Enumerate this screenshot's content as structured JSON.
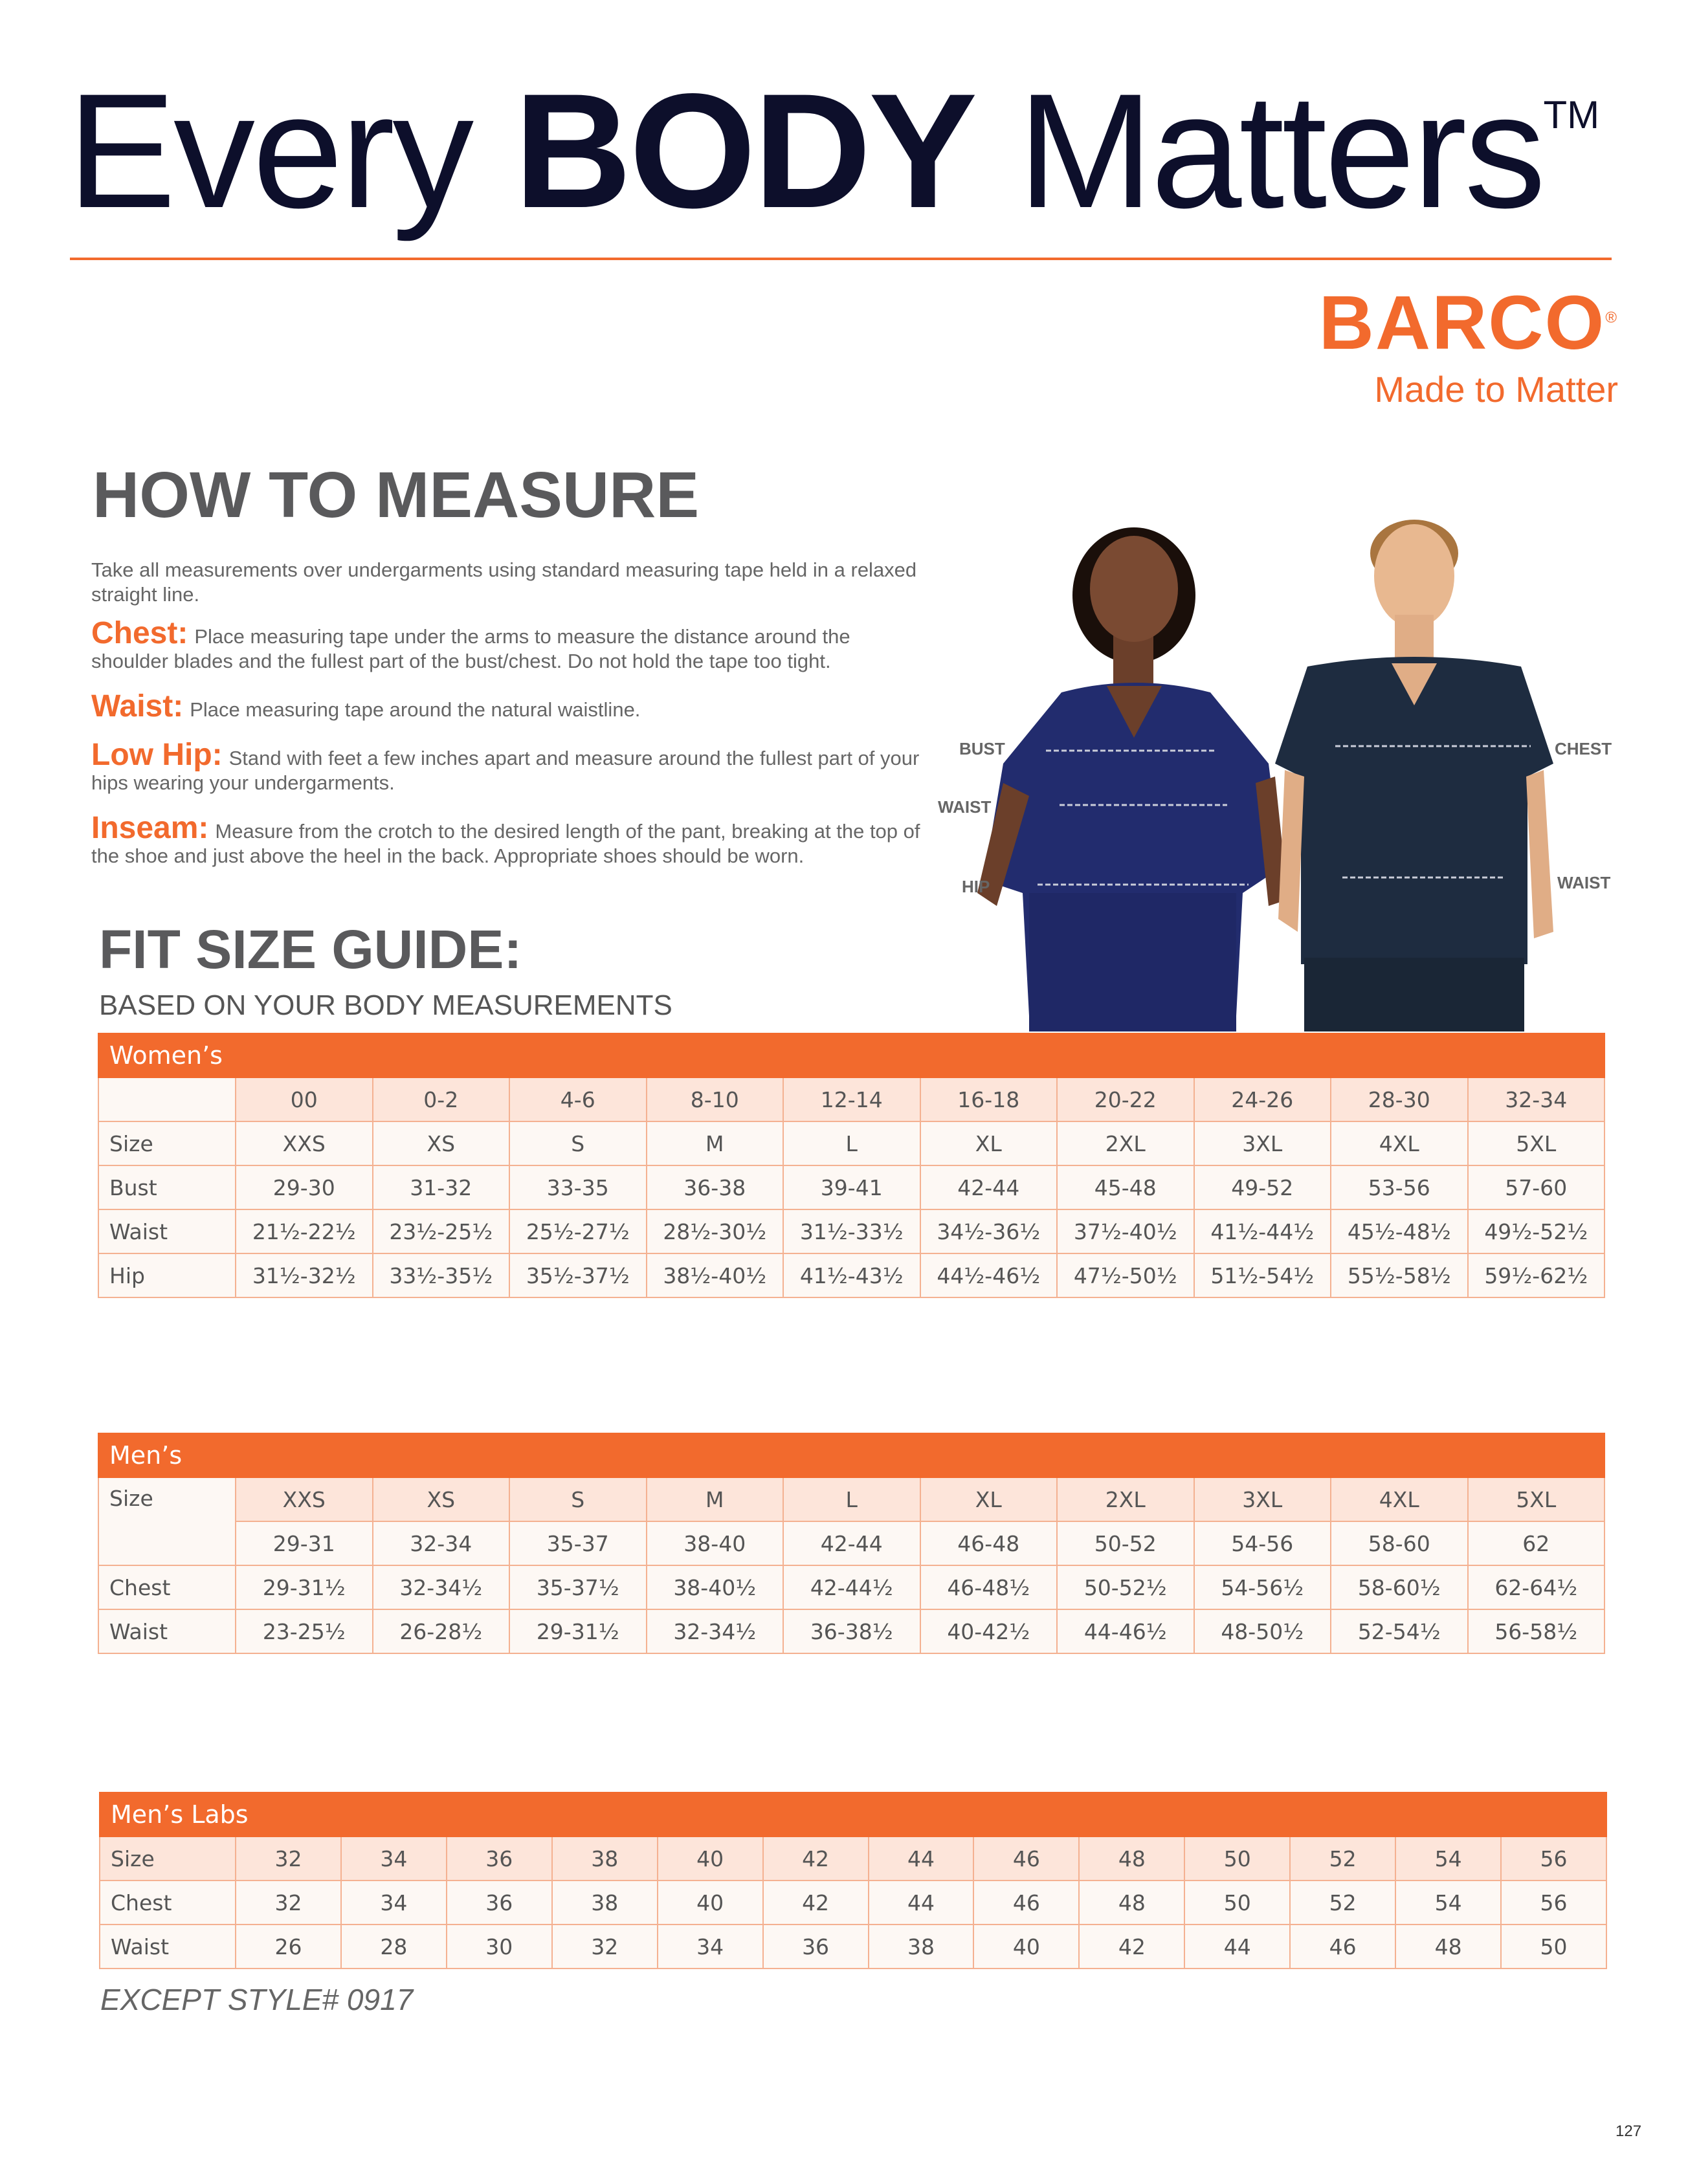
{
  "header": {
    "title_pre": "Every ",
    "title_bold": "BODY",
    "title_post": " Matters",
    "trademark": "TM"
  },
  "logo": {
    "brand": "BARCO",
    "registered": "®",
    "tagline": "Made to Matter"
  },
  "how_to_measure": {
    "heading": "HOW TO MEASURE",
    "intro": "Take all measurements over undergarments using standard measuring tape held in a relaxed straight line.",
    "items": [
      {
        "label": "Chest:",
        "text": "Place measuring tape under the arms to measure the distance around the shoulder blades and the fullest part of the bust/chest. Do not hold the tape too tight."
      },
      {
        "label": "Waist:",
        "text": "Place measuring tape around the natural waistline."
      },
      {
        "label": "Low Hip:",
        "text": "Stand with feet a few inches apart and measure around the fullest part of your hips wearing your undergarments."
      },
      {
        "label": "Inseam:",
        "text": "Measure from the crotch to the desired length of the pant, breaking at the top of the shoe and just above the heel in the back. Appropriate shoes should be worn."
      }
    ]
  },
  "figure_labels": {
    "bust": "BUST",
    "waist_w": "WAIST",
    "hip": "HIP",
    "chest": "CHEST",
    "waist_m": "WAIST"
  },
  "fit_guide": {
    "title": "FIT SIZE GUIDE:",
    "subtitle": "BASED ON YOUR BODY MEASUREMENTS"
  },
  "womens": {
    "title": "Women’s",
    "rows": [
      {
        "label": "",
        "peach": true,
        "cells": [
          "00",
          "0-2",
          "4-6",
          "8-10",
          "12-14",
          "16-18",
          "20-22",
          "24-26",
          "28-30",
          "32-34"
        ]
      },
      {
        "label": "Size",
        "cells": [
          "XXS",
          "XS",
          "S",
          "M",
          "L",
          "XL",
          "2XL",
          "3XL",
          "4XL",
          "5XL"
        ]
      },
      {
        "label": "Bust",
        "cells": [
          "29-30",
          "31-32",
          "33-35",
          "36-38",
          "39-41",
          "42-44",
          "45-48",
          "49-52",
          "53-56",
          "57-60"
        ]
      },
      {
        "label": "Waist",
        "cells": [
          "21½-22½",
          "23½-25½",
          "25½-27½",
          "28½-30½",
          "31½-33½",
          "34½-36½",
          "37½-40½",
          "41½-44½",
          "45½-48½",
          "49½-52½"
        ]
      },
      {
        "label": "Hip",
        "cells": [
          "31½-32½",
          "33½-35½",
          "35½-37½",
          "38½-40½",
          "41½-43½",
          "44½-46½",
          "47½-50½",
          "51½-54½",
          "55½-58½",
          "59½-62½"
        ]
      }
    ]
  },
  "mens": {
    "title": "Men’s",
    "size_label": "Size",
    "sizes": [
      "XXS",
      "XS",
      "S",
      "M",
      "L",
      "XL",
      "2XL",
      "3XL",
      "4XL",
      "5XL"
    ],
    "numeric": [
      "29-31",
      "32-34",
      "35-37",
      "38-40",
      "42-44",
      "46-48",
      "50-52",
      "54-56",
      "58-60",
      "62"
    ],
    "rows": [
      {
        "label": "Chest",
        "cells": [
          "29-31½",
          "32-34½",
          "35-37½",
          "38-40½",
          "42-44½",
          "46-48½",
          "50-52½",
          "54-56½",
          "58-60½",
          "62-64½"
        ]
      },
      {
        "label": "Waist",
        "cells": [
          "23-25½",
          "26-28½",
          "29-31½",
          "32-34½",
          "36-38½",
          "40-42½",
          "44-46½",
          "48-50½",
          "52-54½",
          "56-58½"
        ]
      }
    ]
  },
  "mens_labs": {
    "title": "Men’s Labs",
    "rows": [
      {
        "label": "Size",
        "peach": true,
        "cells": [
          "32",
          "34",
          "36",
          "38",
          "40",
          "42",
          "44",
          "46",
          "48",
          "50",
          "52",
          "54",
          "56"
        ]
      },
      {
        "label": "Chest",
        "cells": [
          "32",
          "34",
          "36",
          "38",
          "40",
          "42",
          "44",
          "46",
          "48",
          "50",
          "52",
          "54",
          "56"
        ]
      },
      {
        "label": "Waist",
        "cells": [
          "26",
          "28",
          "30",
          "32",
          "34",
          "36",
          "38",
          "40",
          "42",
          "44",
          "46",
          "48",
          "50"
        ]
      }
    ],
    "note": "EXCEPT STYLE# 0917"
  },
  "page_number": "127",
  "colors": {
    "accent": "#f26a2d",
    "peach": "#fde5da",
    "cell": "#fdf8f4",
    "navy": "#0d0f2b"
  }
}
